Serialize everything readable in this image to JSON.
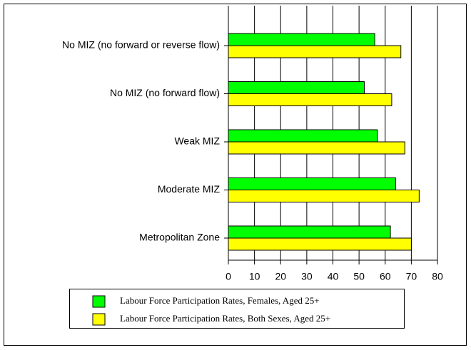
{
  "chart_data": {
    "type": "barh",
    "categories": [
      "No MIZ (no forward or reverse flow)",
      "No MIZ (no forward flow)",
      "Weak MIZ",
      "Moderate MIZ",
      "Metropolitan Zone"
    ],
    "series": [
      {
        "name": "Labour Force Participation Rates, Females, Aged 25+",
        "color": "#00ff00",
        "values": [
          56,
          52,
          57,
          64,
          62
        ]
      },
      {
        "name": "Labour Force Participation Rates, Both Sexes, Aged 25+",
        "color": "#ffff00",
        "values": [
          66,
          62.5,
          67.5,
          73,
          70
        ]
      }
    ],
    "xlim": [
      0,
      80
    ],
    "xticks": [
      0,
      10,
      20,
      30,
      40,
      50,
      60,
      70,
      80
    ],
    "grid": true,
    "legend": "bottom"
  }
}
